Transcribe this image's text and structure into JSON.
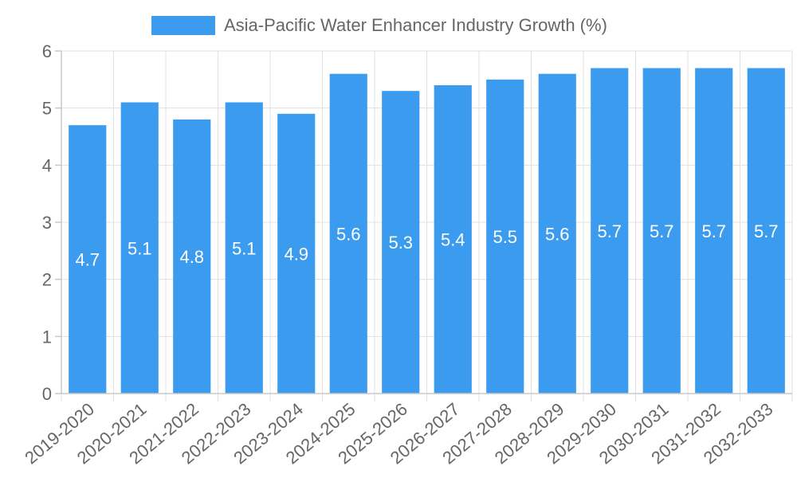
{
  "chart_data": {
    "type": "bar",
    "title": "",
    "legend": {
      "label": "Asia-Pacific Water Enhancer Industry Growth (%)",
      "placement": "top-center"
    },
    "categories": [
      "2019-2020",
      "2020-2021",
      "2021-2022",
      "2022-2023",
      "2023-2024",
      "2024-2025",
      "2025-2026",
      "2026-2027",
      "2027-2028",
      "2028-2029",
      "2029-2030",
      "2030-2031",
      "2031-2032",
      "2032-2033"
    ],
    "series": [
      {
        "name": "Asia-Pacific Water Enhancer Industry Growth (%)",
        "values": [
          4.7,
          5.1,
          4.8,
          5.1,
          4.9,
          5.6,
          5.3,
          5.4,
          5.5,
          5.6,
          5.7,
          5.7,
          5.7,
          5.7
        ],
        "color": "#3a9bef"
      }
    ],
    "xlabel": "",
    "ylabel": "",
    "ylim": [
      0,
      6
    ],
    "yticks": [
      0,
      1,
      2,
      3,
      4,
      5,
      6
    ],
    "grid": true,
    "data_labels": true
  }
}
